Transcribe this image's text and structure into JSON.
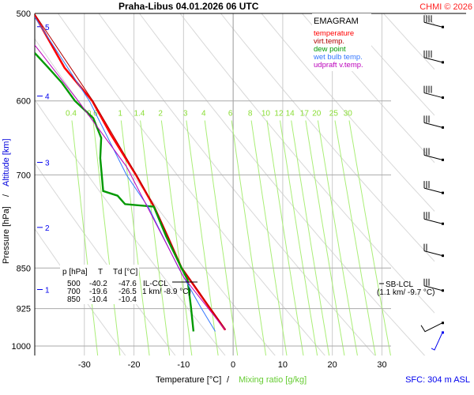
{
  "header": {
    "title": "Praha-Libus    04.01.2026 06 UTC",
    "copyright": "CHMI © 2026"
  },
  "footer": {
    "sfc": "SFC: 304 m ASL"
  },
  "chart_data": {
    "type": "line",
    "title": "EMAGRAM",
    "xlabel": "Temperature [°C]",
    "xlabel_sep": "/",
    "xlabel2": "Mixing ratio [g/kg]",
    "ylabel": "Pressure [hPa]",
    "ylabel_sep": "/",
    "ylabel2": "Altitude [km]",
    "xlim": [
      -40,
      40.6
    ],
    "ylim": [
      500,
      1020
    ],
    "x_ticks": [
      -30,
      -20,
      -10,
      0,
      10,
      20,
      30
    ],
    "y_ticks": [
      500,
      600,
      700,
      850,
      925,
      1000
    ],
    "altitude_ticks": [
      {
        "km": "5",
        "p": 514
      },
      {
        "km": "4",
        "p": 594
      },
      {
        "km": "3",
        "p": 682
      },
      {
        "km": "2",
        "p": 781
      },
      {
        "km": "1",
        "p": 889
      }
    ],
    "mixing_ratio_labels": [
      "0.4",
      "0.6",
      "1",
      "1.4",
      "2",
      "3",
      "4",
      "6",
      "8",
      "10",
      "12",
      "14",
      "17",
      "20",
      "25",
      "30"
    ],
    "mixing_ratio_label_p": 615,
    "dry_adiabats_theta_K": [
      250,
      260,
      270,
      280,
      290,
      300,
      310,
      320,
      330,
      340,
      350,
      360,
      370,
      380
    ],
    "legend": [
      {
        "label": "temperature",
        "color": "#ff0000"
      },
      {
        "label": "virt.temp.",
        "color": "#b00000"
      },
      {
        "label": "dew point",
        "color": "#009900"
      },
      {
        "label": "wet bulb temp.",
        "color": "#3377ff"
      },
      {
        "label": "udpraft v.temp.",
        "color": "#bb00bb"
      }
    ],
    "series": [
      {
        "name": "temperature",
        "color": "#ff0000",
        "points": [
          [
            500,
            -40.2
          ],
          [
            560,
            -34
          ],
          [
            600,
            -28.4
          ],
          [
            643,
            -24.7
          ],
          [
            700,
            -19.6
          ],
          [
            749,
            -15.9
          ],
          [
            796,
            -13.2
          ],
          [
            850,
            -10.4
          ],
          [
            879,
            -8.1
          ],
          [
            923,
            -4.8
          ],
          [
            967,
            -1.6
          ]
        ]
      },
      {
        "name": "virt.temp.",
        "color": "#b00000",
        "points": [
          [
            500,
            -40.1
          ],
          [
            600,
            -28.3
          ],
          [
            700,
            -19.5
          ],
          [
            749,
            -15.8
          ],
          [
            850,
            -10.3
          ],
          [
            923,
            -4.7
          ],
          [
            967,
            -1.5
          ]
        ]
      },
      {
        "name": "dew point",
        "color": "#009900",
        "points": [
          [
            543,
            -40
          ],
          [
            559,
            -37.4
          ],
          [
            578,
            -34.5
          ],
          [
            600,
            -31.9
          ],
          [
            622,
            -28.2
          ],
          [
            648,
            -26.6
          ],
          [
            676,
            -26.8
          ],
          [
            700,
            -26.5
          ],
          [
            724,
            -26.2
          ],
          [
            731,
            -23.3
          ],
          [
            744,
            -21.8
          ],
          [
            748,
            -16
          ],
          [
            796,
            -13.5
          ],
          [
            850,
            -10.4
          ],
          [
            871,
            -9.2
          ],
          [
            923,
            -8.5
          ],
          [
            970,
            -8.0
          ]
        ]
      },
      {
        "name": "wet bulb temp.",
        "color": "#3377ff",
        "points": [
          [
            500,
            -40.5
          ],
          [
            600,
            -29
          ],
          [
            700,
            -21.5
          ],
          [
            750,
            -17
          ],
          [
            850,
            -11
          ],
          [
            923,
            -6.5
          ],
          [
            970,
            -3.6
          ]
        ]
      },
      {
        "name": "udpraft v.temp.",
        "color": "#bb00bb",
        "points": [
          [
            534,
            -40
          ],
          [
            602,
            -31
          ],
          [
            688,
            -21.5
          ],
          [
            866,
            -10
          ],
          [
            967,
            -1.6
          ]
        ]
      }
    ],
    "table": {
      "header": [
        "p [hPa]",
        "T",
        "Td [°C]"
      ],
      "rows": [
        [
          "500",
          "-40.2",
          "-47.6"
        ],
        [
          "700",
          "-19.6",
          "-26.5"
        ],
        [
          "850",
          "-10.4",
          "-10.4"
        ]
      ]
    },
    "annotations": {
      "il_ccl": "IL-CCL",
      "il_ccl_info": "1 km/ -8.9 °C)",
      "il_ccl_p": 866,
      "sb_lcl": "SB-LCL",
      "sb_lcl_info": "(1.1 km/ -9.7 °C)",
      "sb_lcl_p": 880
    },
    "wind_barbs": [
      {
        "p": 511,
        "barbs": 4
      },
      {
        "p": 550,
        "barbs": 4
      },
      {
        "p": 592,
        "barbs": 4
      },
      {
        "p": 630,
        "barbs": 3
      },
      {
        "p": 674,
        "barbs": 3
      },
      {
        "p": 722,
        "barbs": 3
      },
      {
        "p": 770,
        "barbs": 3
      },
      {
        "p": 823,
        "barbs": 2
      },
      {
        "p": 885,
        "barbs": 3
      },
      {
        "p": 953,
        "barbs": 1
      },
      {
        "p": 995,
        "barbs": 1
      }
    ]
  }
}
